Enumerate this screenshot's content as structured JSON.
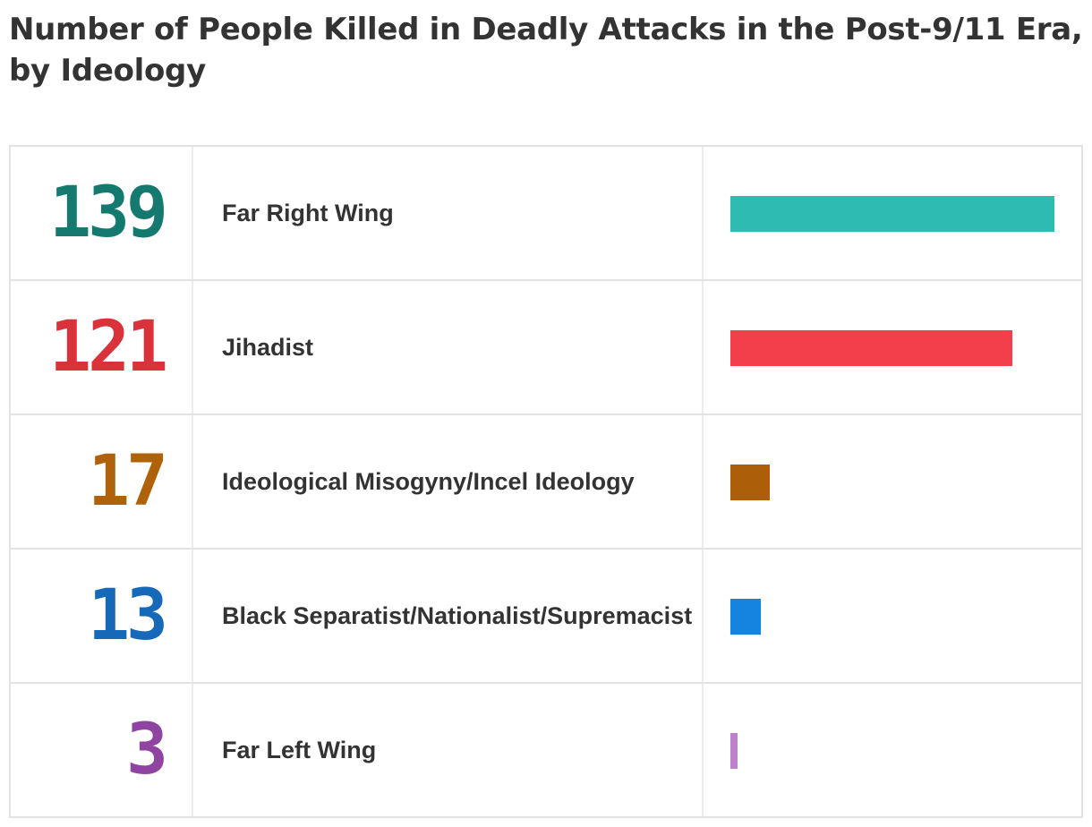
{
  "title": "Number of People Killed in Deadly Attacks in the Post-9/11 Era, by Ideology",
  "chart_data": {
    "type": "bar",
    "orientation": "horizontal",
    "categories": [
      "Far Right Wing",
      "Jihadist",
      "Ideological Misogyny/Incel Ideology",
      "Black Separatist/Nationalist/Supremacist",
      "Far Left Wing"
    ],
    "values": [
      139,
      121,
      17,
      13,
      3
    ],
    "value_labels": [
      "139",
      "121",
      "17",
      "13",
      "3"
    ],
    "colors": [
      "#2ebcb2",
      "#f23f4b",
      "#ad5e08",
      "#1583e0",
      "#bf80cc"
    ],
    "number_colors": [
      "#14796f",
      "#d9323b",
      "#b0620a",
      "#1569b8",
      "#8e44a0"
    ],
    "xlim": [
      0,
      139
    ],
    "title": "Number of People Killed in Deadly Attacks in the Post-9/11 Era, by Ideology",
    "xlabel": "",
    "ylabel": "",
    "grid": false
  }
}
